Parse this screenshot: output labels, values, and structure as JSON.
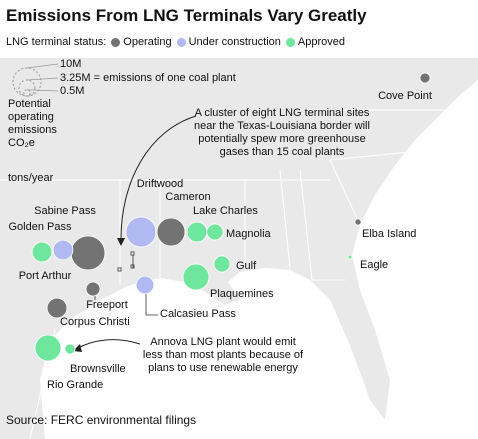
{
  "chart_data": {
    "type": "bubble-map",
    "title": "Emissions From LNG Terminals Vary Greatly",
    "legend_title": "LNG terminal status:",
    "size_title": "Potential operating emissions CO₂e",
    "size_unit": "tons/year",
    "size_legend": [
      {
        "value": 10,
        "label": "10M"
      },
      {
        "value": 3.25,
        "label": "3.25M = emissions of one coal plant"
      },
      {
        "value": 0.5,
        "label": "0.5M"
      }
    ],
    "series": [
      {
        "name": "Operating",
        "color": "#737373",
        "points": [
          {
            "name": "Sabine Pass",
            "value": 14.7
          },
          {
            "name": "Cameron",
            "value": 10
          },
          {
            "name": "Freeport",
            "value": 2.5
          },
          {
            "name": "Corpus Christi",
            "value": 5
          },
          {
            "name": "Cove Point",
            "value": 1.3
          },
          {
            "name": "Elba Island",
            "value": 0.5
          }
        ]
      },
      {
        "name": "Under construction",
        "color": "#b1b9f3",
        "points": [
          {
            "name": "Golden Pass",
            "value": 5
          },
          {
            "name": "Driftwood",
            "value": 11.5
          },
          {
            "name": "Calcasieu Pass",
            "value": 4
          }
        ]
      },
      {
        "name": "Approved",
        "color": "#6ee69d",
        "points": [
          {
            "name": "Port Arthur",
            "value": 5
          },
          {
            "name": "Lake Charles",
            "value": 5
          },
          {
            "name": "Magnolia",
            "value": 3.3
          },
          {
            "name": "Gulf",
            "value": 3.3
          },
          {
            "name": "Plaquemines",
            "value": 8.6
          },
          {
            "name": "Rio Grande",
            "value": 8.6
          },
          {
            "name": "Brownsville",
            "value": 1.3
          },
          {
            "name": "Eagle",
            "value": 0.2
          }
        ]
      }
    ],
    "annotations": [
      "A cluster of eight LNG terminal sites near the Texas-Louisiana border will potentially spew more greenhouse gases than 15 coal plants",
      "Annova LNG plant would emit less than most plants because of plans to use renewable energy"
    ],
    "source": "Source: FERC environmental filings"
  }
}
